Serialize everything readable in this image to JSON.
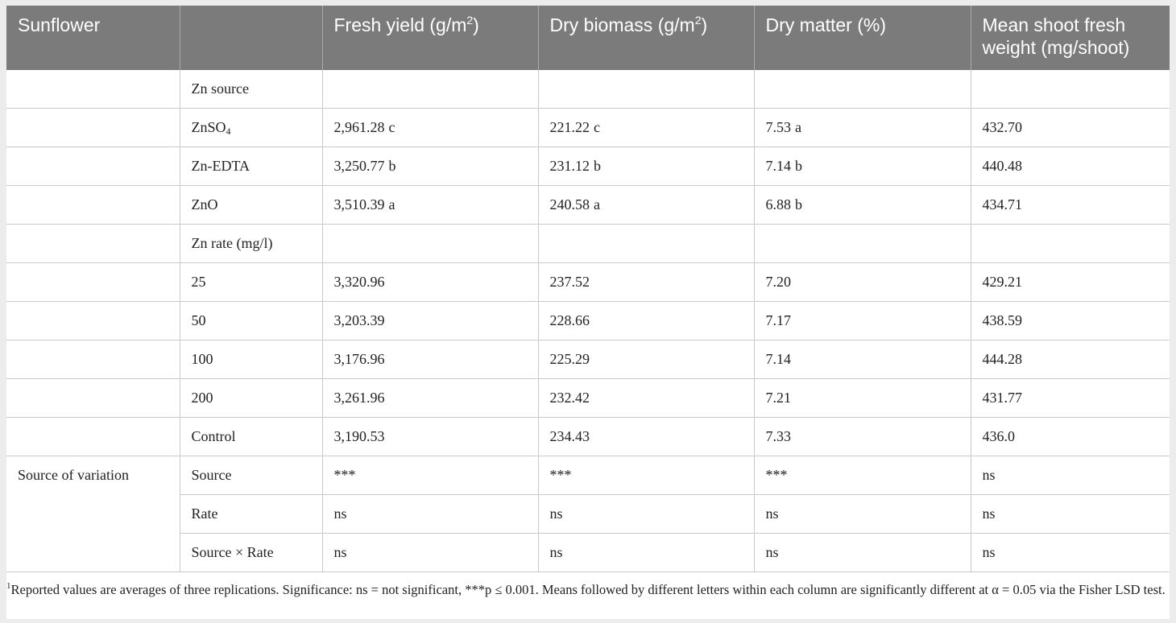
{
  "header": {
    "col1": "Sunflower",
    "col2": "",
    "col3": {
      "text": "Fresh yield (g/m",
      "sup": "2",
      "tail": ")"
    },
    "col4": {
      "text": "Dry biomass (g/m",
      "sup": "2",
      "tail": ")"
    },
    "col5": "Dry matter (%)",
    "col6": "Mean shoot fresh weight (mg/shoot)"
  },
  "rows": {
    "zn_source": {
      "label": "Zn source"
    },
    "znso4": {
      "label_main": "ZnSO",
      "label_sub": "4",
      "fresh": "2,961.28",
      "fresh_l": "c",
      "dry": "221.22",
      "dry_l": "c",
      "dm": "7.53",
      "dm_l": "a",
      "msfw": "432.70"
    },
    "zn_edta": {
      "label": "Zn-EDTA",
      "fresh": "3,250.77",
      "fresh_l": "b",
      "dry": "231.12",
      "dry_l": "b",
      "dm": "7.14",
      "dm_l": "b",
      "msfw": "440.48"
    },
    "zno": {
      "label": "ZnO",
      "fresh": "3,510.39",
      "fresh_l": "a",
      "dry": "240.58",
      "dry_l": "a",
      "dm": "6.88",
      "dm_l": "b",
      "msfw": "434.71"
    },
    "zn_rate": {
      "label": "Zn rate (mg/l)"
    },
    "r25": {
      "label": "25",
      "fresh": "3,320.96",
      "dry": "237.52",
      "dm": "7.20",
      "msfw": "429.21"
    },
    "r50": {
      "label": "50",
      "fresh": "3,203.39",
      "dry": "228.66",
      "dm": "7.17",
      "msfw": "438.59"
    },
    "r100": {
      "label": "100",
      "fresh": "3,176.96",
      "dry": "225.29",
      "dm": "7.14",
      "msfw": "444.28"
    },
    "r200": {
      "label": "200",
      "fresh": "3,261.96",
      "dry": "232.42",
      "dm": "7.21",
      "msfw": "431.77"
    },
    "control": {
      "label": "Control",
      "fresh": "3,190.53",
      "dry": "234.43",
      "dm": "7.33",
      "msfw": "436.0"
    },
    "source": {
      "group": "Source of variation",
      "label": "Source",
      "fresh": "***",
      "dry": "***",
      "dm": "***",
      "msfw": "ns"
    },
    "rate": {
      "label": "Rate",
      "fresh": "ns",
      "dry": "ns",
      "dm": "ns",
      "msfw": "ns"
    },
    "source_rate": {
      "label": "Source × Rate",
      "fresh": "ns",
      "dry": "ns",
      "dm": "ns",
      "msfw": "ns"
    }
  },
  "footnote": {
    "marker": "1",
    "text": "Reported values are averages of three replications. Significance: ns = not significant, ***p ≤ 0.001. Means followed by different letters within each column are significantly different at α = 0.05 via the Fisher LSD test."
  }
}
